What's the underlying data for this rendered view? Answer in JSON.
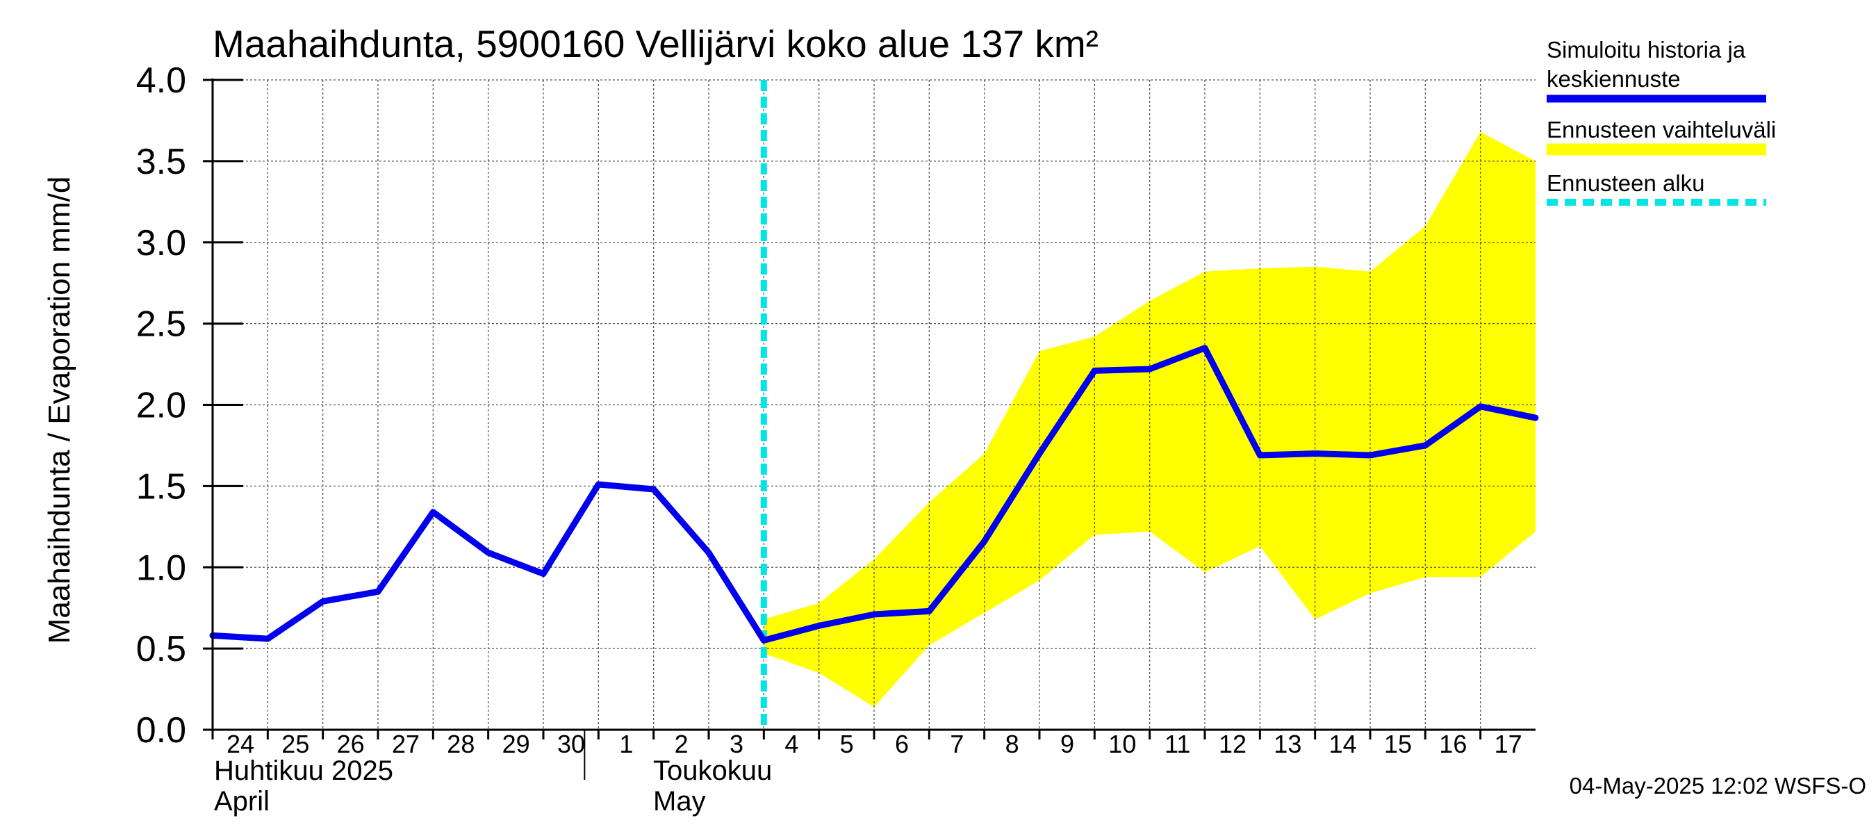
{
  "chart_data": {
    "type": "line",
    "title": "Maahaihdunta, 5900160 Vellijärvi koko alue 137 km²",
    "ylabel": "Maahaihdunta / Evaporation   mm/d",
    "ylim": [
      0,
      4
    ],
    "yticks": [
      "0.0",
      "0.5",
      "1.0",
      "1.5",
      "2.0",
      "2.5",
      "3.0",
      "3.5",
      "4.0"
    ],
    "x_start_date": "2025-04-24",
    "x_end_date": "2025-05-18",
    "x_tick_labels": [
      "24",
      "25",
      "26",
      "27",
      "28",
      "29",
      "30",
      "1",
      "2",
      "3",
      "4",
      "5",
      "6",
      "7",
      "8",
      "9",
      "10",
      "11",
      "12",
      "13",
      "14",
      "15",
      "16",
      "17"
    ],
    "month_labels": [
      {
        "line1": "Huhtikuu  2025",
        "line2": "April"
      },
      {
        "line1": "Toukokuu",
        "line2": "May"
      }
    ],
    "grid": true,
    "forecast_start": "2025-05-04",
    "series": [
      {
        "name": "Simuloitu historia ja keskiennuste",
        "color": "#0000ee",
        "x": [
          "2025-04-24",
          "2025-04-25",
          "2025-04-26",
          "2025-04-27",
          "2025-04-28",
          "2025-04-29",
          "2025-04-30",
          "2025-05-01",
          "2025-05-02",
          "2025-05-03",
          "2025-05-04",
          "2025-05-05",
          "2025-05-06",
          "2025-05-07",
          "2025-05-08",
          "2025-05-09",
          "2025-05-10",
          "2025-05-11",
          "2025-05-12",
          "2025-05-13",
          "2025-05-14",
          "2025-05-15",
          "2025-05-16",
          "2025-05-17",
          "2025-05-18"
        ],
        "values": [
          0.58,
          0.56,
          0.79,
          0.85,
          1.34,
          1.09,
          0.96,
          1.51,
          1.48,
          1.09,
          0.55,
          0.64,
          0.71,
          0.73,
          1.16,
          1.7,
          2.21,
          2.22,
          2.35,
          1.69,
          1.7,
          1.69,
          1.75,
          1.99,
          1.92
        ]
      }
    ],
    "band": {
      "name": "Ennusteen vaihteluväli",
      "color": "#ffff00",
      "x": [
        "2025-05-04",
        "2025-05-05",
        "2025-05-06",
        "2025-05-07",
        "2025-05-08",
        "2025-05-09",
        "2025-05-10",
        "2025-05-11",
        "2025-05-12",
        "2025-05-13",
        "2025-05-14",
        "2025-05-15",
        "2025-05-16",
        "2025-05-17",
        "2025-05-18"
      ],
      "upper": [
        0.68,
        0.78,
        1.05,
        1.4,
        1.7,
        2.33,
        2.42,
        2.64,
        2.82,
        2.84,
        2.85,
        2.82,
        3.1,
        3.68,
        3.5
      ],
      "lower": [
        0.47,
        0.35,
        0.14,
        0.52,
        0.72,
        0.92,
        1.2,
        1.22,
        0.97,
        1.13,
        0.68,
        0.84,
        0.94,
        0.94,
        1.22
      ]
    },
    "legend": {
      "placement": "right",
      "items": [
        {
          "label_line1": "Simuloitu historia ja",
          "label_line2": "keskiennuste",
          "color": "#0000ee",
          "style": "solid"
        },
        {
          "label_line1": "Ennusteen vaihteluväli",
          "label_line2": "",
          "color": "#ffff00",
          "style": "solid"
        },
        {
          "label_line1": "Ennusteen alku",
          "label_line2": "",
          "color": "#00e5e5",
          "style": "dashed"
        }
      ]
    },
    "footer": "04-May-2025 12:02 WSFS-O"
  }
}
